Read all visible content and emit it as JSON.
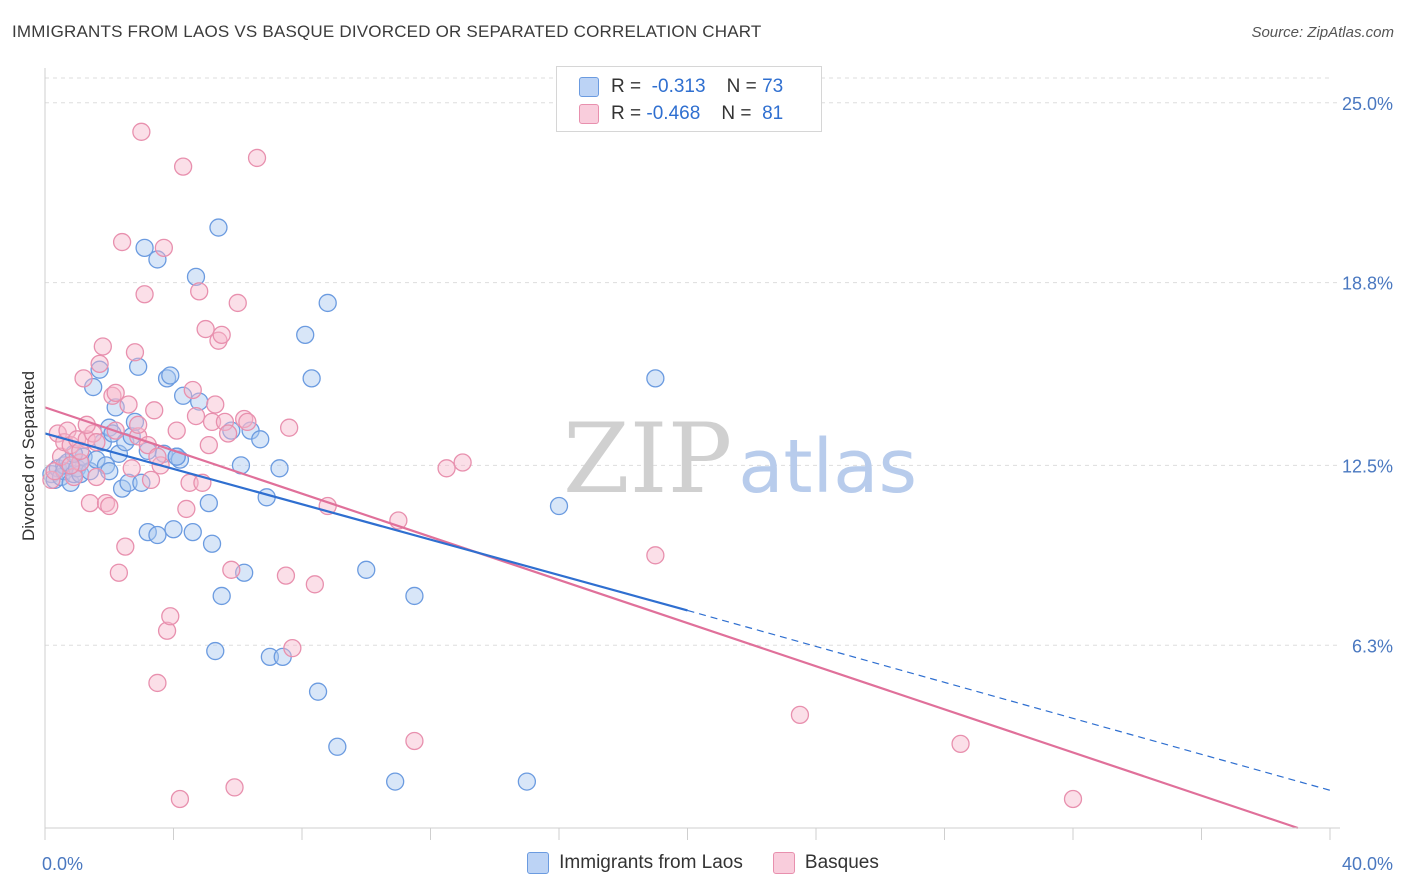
{
  "header": {
    "title": "IMMIGRANTS FROM LAOS VS BASQUE DIVORCED OR SEPARATED CORRELATION CHART",
    "source": "Source: ZipAtlas.com"
  },
  "watermark": {
    "part1": "ZIP",
    "part2": "atlas"
  },
  "legend": {
    "rows": [
      {
        "r_label": "R =",
        "r_value": "-0.313",
        "n_label": "N =",
        "n_value": "73"
      },
      {
        "r_label": "R =",
        "r_value": "-0.468",
        "n_label": "N =",
        "n_value": "81"
      }
    ]
  },
  "bottom_legend": {
    "series1": "Immigrants from Laos",
    "series2": "Basques"
  },
  "colors": {
    "laos_fill": "#a9c7f0",
    "laos_stroke": "#6b9be0",
    "laos_line": "#2f6fd0",
    "basque_fill": "#f6b8cc",
    "basque_stroke": "#e890ae",
    "basque_line": "#e0709a",
    "grid": "#dddddd",
    "axis_label": "#4a78c0"
  },
  "chart_data": {
    "type": "scatter",
    "title": "IMMIGRANTS FROM LAOS VS BASQUE DIVORCED OR SEPARATED CORRELATION CHART",
    "xlabel": "",
    "ylabel": "Divorced or Separated",
    "xlim": [
      0,
      40
    ],
    "ylim": [
      0,
      26.2
    ],
    "x_tick_labels": [
      "0.0%",
      "40.0%"
    ],
    "y_ticks": [
      6.3,
      12.5,
      18.8,
      25.0
    ],
    "y_tick_labels": [
      "6.3%",
      "12.5%",
      "18.8%",
      "25.0%"
    ],
    "grid": true,
    "series": [
      {
        "name": "Immigrants from Laos",
        "points": [
          [
            0.2,
            12.2
          ],
          [
            0.3,
            12.0
          ],
          [
            0.4,
            12.4
          ],
          [
            0.5,
            12.1
          ],
          [
            0.6,
            12.5
          ],
          [
            0.6,
            12.3
          ],
          [
            0.7,
            12.6
          ],
          [
            0.8,
            11.9
          ],
          [
            0.9,
            12.2
          ],
          [
            1.0,
            12.4
          ],
          [
            1.1,
            12.2
          ],
          [
            1.2,
            12.8
          ],
          [
            1.4,
            12.3
          ],
          [
            1.5,
            15.2
          ],
          [
            1.6,
            12.7
          ],
          [
            1.7,
            15.8
          ],
          [
            1.8,
            13.3
          ],
          [
            1.9,
            12.5
          ],
          [
            2.0,
            13.8
          ],
          [
            2.1,
            13.6
          ],
          [
            2.2,
            14.5
          ],
          [
            2.3,
            12.9
          ],
          [
            2.4,
            11.7
          ],
          [
            2.5,
            13.3
          ],
          [
            2.6,
            11.9
          ],
          [
            2.7,
            13.5
          ],
          [
            2.8,
            14.0
          ],
          [
            2.9,
            15.9
          ],
          [
            3.0,
            11.9
          ],
          [
            3.1,
            20.0
          ],
          [
            3.2,
            13.0
          ],
          [
            3.2,
            10.2
          ],
          [
            3.5,
            19.6
          ],
          [
            3.5,
            10.1
          ],
          [
            3.7,
            12.9
          ],
          [
            3.8,
            15.5
          ],
          [
            3.9,
            15.6
          ],
          [
            4.0,
            10.3
          ],
          [
            4.1,
            12.8
          ],
          [
            4.2,
            12.7
          ],
          [
            4.3,
            14.9
          ],
          [
            4.6,
            10.2
          ],
          [
            4.7,
            19.0
          ],
          [
            4.8,
            14.7
          ],
          [
            5.1,
            11.2
          ],
          [
            5.2,
            9.8
          ],
          [
            5.3,
            6.1
          ],
          [
            5.4,
            20.7
          ],
          [
            5.5,
            8.0
          ],
          [
            5.8,
            13.7
          ],
          [
            6.1,
            12.5
          ],
          [
            6.2,
            8.8
          ],
          [
            6.4,
            13.7
          ],
          [
            6.7,
            13.4
          ],
          [
            6.9,
            11.4
          ],
          [
            7.0,
            5.9
          ],
          [
            7.3,
            12.4
          ],
          [
            7.4,
            5.9
          ],
          [
            8.1,
            17.0
          ],
          [
            8.3,
            15.5
          ],
          [
            8.5,
            4.7
          ],
          [
            8.8,
            18.1
          ],
          [
            9.1,
            2.8
          ],
          [
            10.0,
            8.9
          ],
          [
            10.9,
            1.6
          ],
          [
            11.5,
            8.0
          ],
          [
            15.0,
            1.6
          ],
          [
            16.0,
            11.1
          ],
          [
            19.0,
            15.5
          ],
          [
            4.1,
            12.8
          ],
          [
            2.0,
            12.3
          ],
          [
            1.1,
            12.6
          ],
          [
            0.9,
            12.9
          ]
        ]
      },
      {
        "name": "Basques",
        "points": [
          [
            0.2,
            12.0
          ],
          [
            0.3,
            12.3
          ],
          [
            0.4,
            13.6
          ],
          [
            0.5,
            12.8
          ],
          [
            0.6,
            13.3
          ],
          [
            0.7,
            13.7
          ],
          [
            0.8,
            13.2
          ],
          [
            0.9,
            12.1
          ],
          [
            1.0,
            13.4
          ],
          [
            1.1,
            12.6
          ],
          [
            1.2,
            15.5
          ],
          [
            1.3,
            13.4
          ],
          [
            1.4,
            11.2
          ],
          [
            1.5,
            13.6
          ],
          [
            1.6,
            13.3
          ],
          [
            1.7,
            16.0
          ],
          [
            1.8,
            16.6
          ],
          [
            1.9,
            11.2
          ],
          [
            2.0,
            11.1
          ],
          [
            2.1,
            14.9
          ],
          [
            2.2,
            13.7
          ],
          [
            2.3,
            8.8
          ],
          [
            2.4,
            20.2
          ],
          [
            2.5,
            9.7
          ],
          [
            2.6,
            14.6
          ],
          [
            2.7,
            12.4
          ],
          [
            2.8,
            16.4
          ],
          [
            2.9,
            13.5
          ],
          [
            3.0,
            24.0
          ],
          [
            3.1,
            18.4
          ],
          [
            3.2,
            13.2
          ],
          [
            3.3,
            12.0
          ],
          [
            3.4,
            14.4
          ],
          [
            3.5,
            5.0
          ],
          [
            3.6,
            12.5
          ],
          [
            3.7,
            20.0
          ],
          [
            3.8,
            6.8
          ],
          [
            3.9,
            7.3
          ],
          [
            4.1,
            13.7
          ],
          [
            4.2,
            1.0
          ],
          [
            4.3,
            22.8
          ],
          [
            4.5,
            11.9
          ],
          [
            4.6,
            15.1
          ],
          [
            4.7,
            14.2
          ],
          [
            4.8,
            18.5
          ],
          [
            4.9,
            11.9
          ],
          [
            5.0,
            17.2
          ],
          [
            5.1,
            13.2
          ],
          [
            5.2,
            14.0
          ],
          [
            5.3,
            14.6
          ],
          [
            5.4,
            16.8
          ],
          [
            5.5,
            17.0
          ],
          [
            5.6,
            14.0
          ],
          [
            5.8,
            8.9
          ],
          [
            5.9,
            1.4
          ],
          [
            6.0,
            18.1
          ],
          [
            6.2,
            14.1
          ],
          [
            6.3,
            14.0
          ],
          [
            6.6,
            23.1
          ],
          [
            7.5,
            8.7
          ],
          [
            7.6,
            13.8
          ],
          [
            7.7,
            6.2
          ],
          [
            8.4,
            8.4
          ],
          [
            8.8,
            11.1
          ],
          [
            11.0,
            10.6
          ],
          [
            11.5,
            3.0
          ],
          [
            12.5,
            12.4
          ],
          [
            13.0,
            12.6
          ],
          [
            19.0,
            9.4
          ],
          [
            23.5,
            3.9
          ],
          [
            28.5,
            2.9
          ],
          [
            32.0,
            1.0
          ],
          [
            1.1,
            13.0
          ],
          [
            0.8,
            12.5
          ],
          [
            1.6,
            12.1
          ],
          [
            2.2,
            15.0
          ],
          [
            3.5,
            12.8
          ],
          [
            4.4,
            11.0
          ],
          [
            2.9,
            13.9
          ],
          [
            5.7,
            13.6
          ],
          [
            1.3,
            13.9
          ]
        ]
      }
    ],
    "trendlines": [
      {
        "series": "Immigrants from Laos",
        "solid": [
          [
            0,
            13.6
          ],
          [
            20,
            7.5
          ]
        ],
        "dashed": [
          [
            20,
            7.5
          ],
          [
            40,
            1.3
          ]
        ]
      },
      {
        "series": "Basques",
        "solid": [
          [
            0,
            14.5
          ],
          [
            39.0,
            0
          ]
        ]
      }
    ]
  }
}
